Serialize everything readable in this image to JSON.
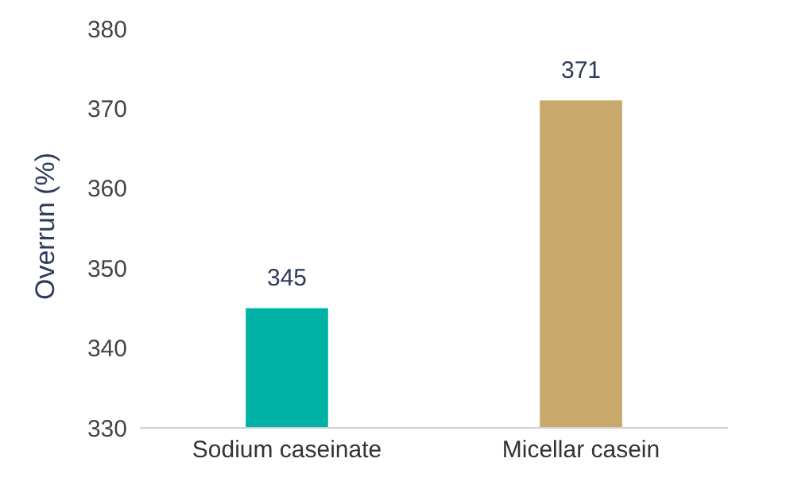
{
  "chart_data": {
    "type": "bar",
    "ylabel": "Overrun (%)",
    "categories": [
      "Sodium caseinate",
      "Micellar casein"
    ],
    "values": [
      345,
      371
    ],
    "colors": [
      "#00b2a5",
      "#c8a96b"
    ],
    "ylim": [
      330,
      380
    ],
    "yticks": [
      330,
      340,
      350,
      360,
      370,
      380
    ],
    "data_labels": true
  }
}
